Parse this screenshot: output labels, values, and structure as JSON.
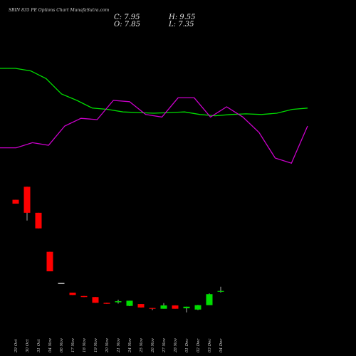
{
  "header": {
    "title": "SBIN 835 PE Options Chart MunafaSutra.com",
    "close_label": "C: 7.95",
    "high_label": "H: 9.55",
    "open_label": "O: 7.85",
    "low_label": "L: 7.35"
  },
  "colors": {
    "background": "#000000",
    "up": "#00dd00",
    "down": "#ff0000",
    "green_line": "#00dd00",
    "magenta_line": "#cc00cc",
    "text": "#d0d0d0"
  },
  "chart_data": {
    "type": "candlestick",
    "categories": [
      "29 Oct",
      "30 Oct",
      "31 Oct",
      "04 Nov",
      "06 Nov",
      "17 Nov",
      "18 Nov",
      "19 Nov",
      "20 Nov",
      "21 Nov",
      "24 Nov",
      "25 Nov",
      "26 Nov",
      "27 Nov",
      "28 Nov",
      "01 Dec",
      "02 Dec",
      "03 Dec",
      "04 Dec"
    ],
    "candles": [
      {
        "open": 43.0,
        "high": 43.0,
        "low": 41.5,
        "close": 41.5
      },
      {
        "open": 48.0,
        "high": 48.0,
        "low": 35.0,
        "close": 38.0
      },
      {
        "open": 38.0,
        "high": 38.0,
        "low": 32.0,
        "close": 32.0
      },
      {
        "open": 23.0,
        "high": 23.0,
        "low": 15.5,
        "close": 15.5
      },
      {
        "open": 11.0,
        "high": 11.0,
        "low": 11.0,
        "close": 11.0
      },
      {
        "open": 7.3,
        "high": 7.3,
        "low": 6.4,
        "close": 6.4
      },
      {
        "open": 6.0,
        "high": 6.0,
        "low": 5.6,
        "close": 5.6
      },
      {
        "open": 5.6,
        "high": 5.6,
        "low": 3.4,
        "close": 3.4
      },
      {
        "open": 3.4,
        "high": 3.4,
        "low": 3.0,
        "close": 3.0
      },
      {
        "open": 3.6,
        "high": 4.6,
        "low": 3.1,
        "close": 4.0
      },
      {
        "open": 2.2,
        "high": 4.2,
        "low": 2.1,
        "close": 4.2
      },
      {
        "open": 2.9,
        "high": 2.9,
        "low": 1.6,
        "close": 1.6
      },
      {
        "open": 1.4,
        "high": 1.4,
        "low": 0.6,
        "close": 1.1
      },
      {
        "open": 1.1,
        "high": 3.3,
        "low": 1.1,
        "close": 2.4
      },
      {
        "open": 2.4,
        "high": 2.4,
        "low": 1.1,
        "close": 1.1
      },
      {
        "open": 1.3,
        "high": 1.9,
        "low": -0.3,
        "close": 1.9
      },
      {
        "open": 0.8,
        "high": 2.6,
        "low": 0.6,
        "close": 2.5
      },
      {
        "open": 2.5,
        "high": 7.0,
        "low": 2.5,
        "close": 6.7
      },
      {
        "open": 7.85,
        "high": 9.55,
        "low": 7.35,
        "close": 7.95
      }
    ],
    "green_series": [
      80,
      80,
      78,
      72,
      60,
      55,
      49,
      48,
      46,
      45.5,
      45,
      45.5,
      46,
      44,
      43,
      44,
      44.5,
      44,
      45,
      48,
      49
    ],
    "magenta_series": [
      18,
      18,
      22,
      20,
      35,
      41,
      40,
      55,
      54,
      44,
      42,
      57,
      57,
      42,
      50,
      42,
      30,
      10,
      6,
      35
    ],
    "ylim": [
      -2,
      50
    ]
  }
}
